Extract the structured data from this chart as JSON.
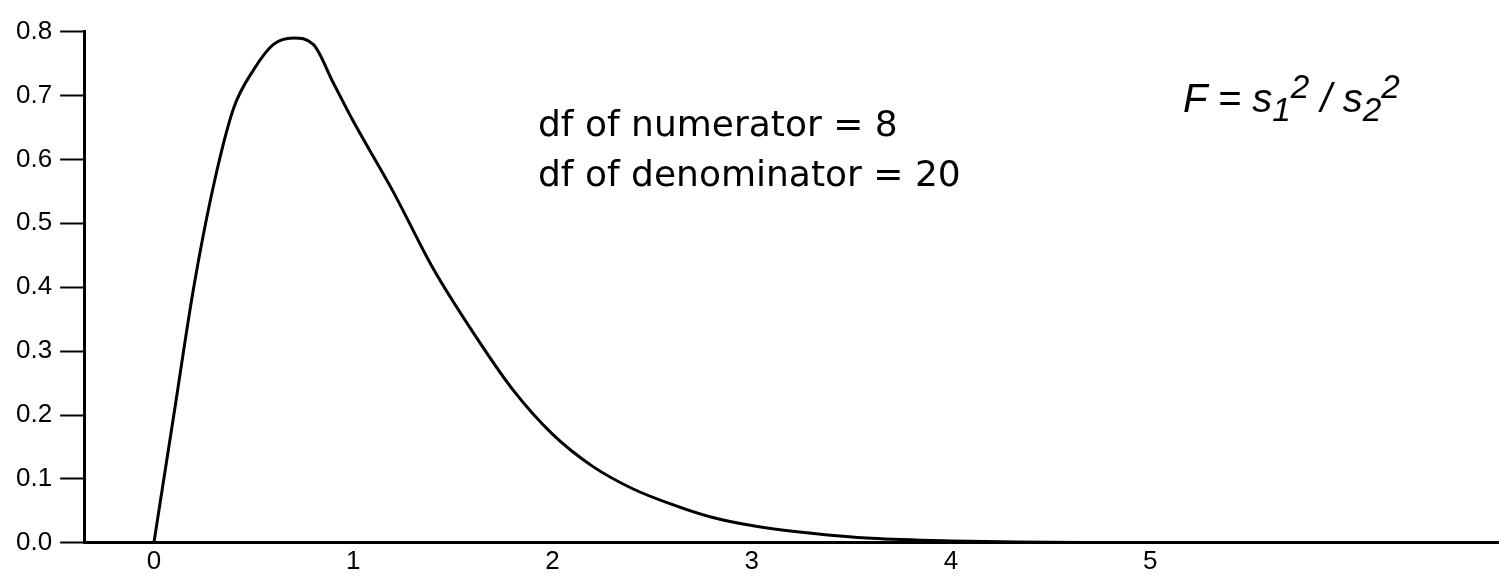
{
  "chart_data": {
    "type": "line",
    "x": [
      0,
      0.1,
      0.2,
      0.3,
      0.4,
      0.5,
      0.6,
      0.7,
      0.8,
      0.9,
      1.0,
      1.2,
      1.4,
      1.6,
      1.8,
      2.0,
      2.2,
      2.4,
      2.6,
      2.8,
      3.0,
      3.3,
      3.6,
      4.0,
      5.0,
      6.7
    ],
    "series": [
      {
        "color": "#000000",
        "values": [
          0,
          0.2,
          0.4,
          0.56,
          0.68,
          0.74,
          0.78,
          0.79,
          0.78,
          0.72,
          0.66,
          0.55,
          0.43,
          0.33,
          0.24,
          0.17,
          0.12,
          0.085,
          0.06,
          0.04,
          0.027,
          0.015,
          0.007,
          0.003,
          0,
          0
        ]
      }
    ],
    "xlim": [
      -0.35,
      6.75
    ],
    "xticks": [
      0,
      1,
      2,
      3,
      4,
      5
    ],
    "ylim": [
      0,
      0.8
    ],
    "yticks": [
      {
        "value": 0,
        "label": "0.0"
      },
      0.1,
      0.2,
      0.3,
      0.4,
      0.5,
      0.6,
      0.7,
      0.8
    ],
    "grid": false,
    "legend": false,
    "marker": "none",
    "line_style": "solid",
    "annotations": [
      "df of numerator = 8",
      "df of denominator = 20",
      "F = s$_{1}$$^{2}$ / s$_{2}$$^{2}$"
    ]
  }
}
